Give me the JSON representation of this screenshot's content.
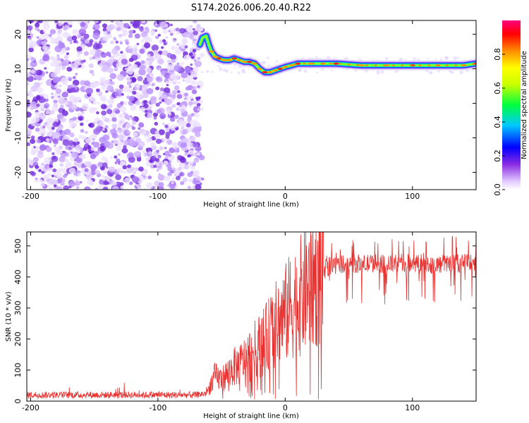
{
  "title": "S174.2026.006.20.40.R22",
  "chart_data": [
    {
      "type": "heatmap",
      "name": "spectrogram",
      "xlabel": "Height of straight line (km)",
      "ylabel": "Frequency (Hz)",
      "xlim": [
        -203,
        150
      ],
      "ylim": [
        -25,
        24
      ],
      "xticks": [
        -200,
        -100,
        0,
        100
      ],
      "yticks": [
        -20,
        -10,
        0,
        10,
        20
      ],
      "noise_region_x": [
        -203,
        -67
      ],
      "signal_track": {
        "x": [
          -67,
          -65,
          -62,
          -60,
          -58,
          -55,
          -52,
          -48,
          -44,
          -40,
          -36,
          -32,
          -28,
          -24,
          -20,
          -16,
          -12,
          -8,
          -4,
          0,
          5,
          10,
          20,
          30,
          40,
          60,
          80,
          100,
          120,
          140,
          150
        ],
        "y": [
          17,
          19,
          19.5,
          17,
          15,
          13.5,
          13,
          12.5,
          12.5,
          13,
          12.5,
          12,
          12,
          11.5,
          10,
          9,
          9,
          9.5,
          10,
          10.5,
          11,
          11.5,
          11.5,
          11.5,
          11.5,
          11,
          11,
          11,
          11,
          11,
          11.5
        ]
      },
      "colorbar": {
        "label": "Normalized spectral amplitude",
        "range": [
          0,
          1
        ],
        "ticks": [
          0.0,
          0.2,
          0.4,
          0.6,
          0.8
        ],
        "tick_labels": [
          "0.0",
          "0.2",
          "0.4",
          "0.6",
          "0.8"
        ]
      }
    },
    {
      "type": "line",
      "name": "snr",
      "xlabel": "Height of straight line (km)",
      "ylabel": "SNR (10 * v/v)",
      "xlim": [
        -203,
        150
      ],
      "ylim": [
        0,
        545
      ],
      "xticks": [
        -200,
        -100,
        0,
        100
      ],
      "yticks": [
        0,
        100,
        200,
        300,
        400,
        500
      ],
      "color": "#e8312f",
      "series": [
        {
          "name": "SNR",
          "x": [
            -203,
            -150,
            -100,
            -70,
            -62,
            -58,
            -55,
            -50,
            -45,
            -40,
            -35,
            -30,
            -25,
            -20,
            -15,
            -10,
            -5,
            0,
            5,
            10,
            15,
            20,
            25,
            30,
            35,
            40,
            50,
            60,
            70,
            80,
            90,
            100,
            110,
            120,
            130,
            140,
            150
          ],
          "y": [
            20,
            20,
            20,
            20,
            25,
            60,
            80,
            70,
            90,
            110,
            120,
            140,
            160,
            180,
            200,
            230,
            260,
            280,
            310,
            330,
            350,
            380,
            400,
            420,
            435,
            440,
            445,
            440,
            445,
            440,
            445,
            445,
            440,
            440,
            445,
            445,
            450
          ]
        }
      ]
    }
  ]
}
